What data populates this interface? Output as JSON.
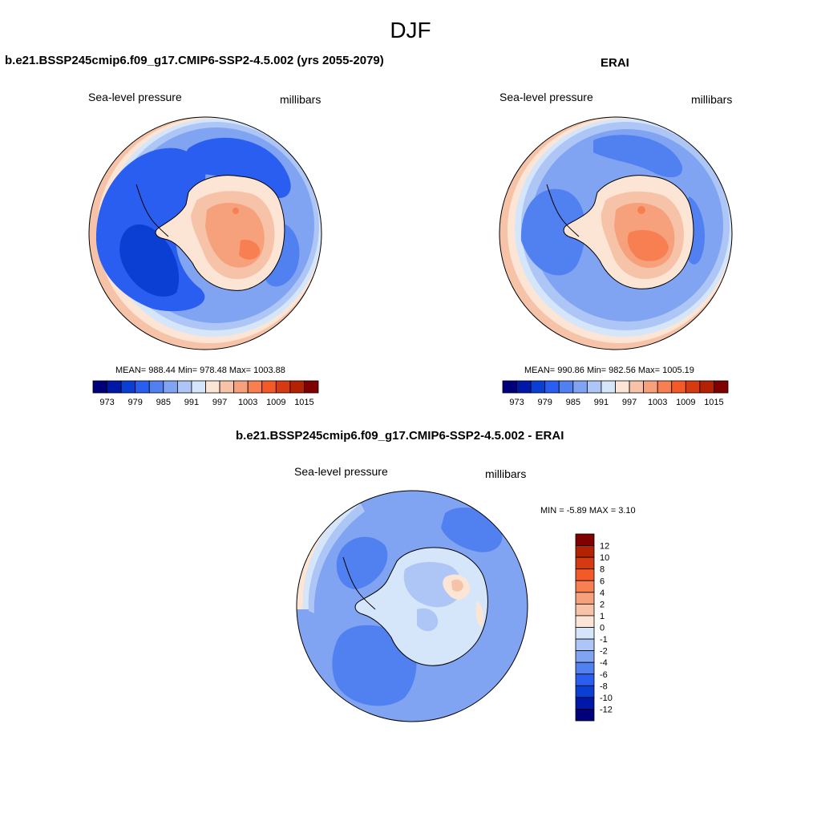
{
  "figure": {
    "title": "DJF"
  },
  "panels": {
    "model": {
      "title": "b.e21.BSSP245cmip6.f09_g17.CMIP6-SSP2-4.5.002 (yrs 2055-2079)",
      "left_label": "Sea-level pressure",
      "right_label": "millibars",
      "stats": "MEAN= 988.44  Min= 978.48  Max= 1003.88"
    },
    "obs": {
      "title": "ERAI",
      "left_label": "Sea-level pressure",
      "right_label": "millibars",
      "stats": "MEAN= 990.86  Min= 982.56  Max= 1005.19"
    },
    "diff": {
      "title": "b.e21.BSSP245cmip6.f09_g17.CMIP6-SSP2-4.5.002 - ERAI",
      "left_label": "Sea-level pressure",
      "right_label": "millibars",
      "stats": "MIN =  -5.89 MAX =   3.10"
    }
  },
  "colorbars": {
    "abs": {
      "colors": [
        "#00007a",
        "#0018a8",
        "#0b3fd4",
        "#2a5ef0",
        "#5180f0",
        "#80a4f2",
        "#aec6f6",
        "#d6e6fa",
        "#fde5d6",
        "#f7c3a8",
        "#f6a07c",
        "#f77f52",
        "#f45a28",
        "#d63a10",
        "#b22203",
        "#800000"
      ],
      "tick_labels": [
        "973",
        "979",
        "985",
        "991",
        "997",
        "1003",
        "1009",
        "1015"
      ]
    },
    "diff": {
      "colors": [
        "#800000",
        "#b22203",
        "#d63a10",
        "#f45a28",
        "#f77f52",
        "#f6a07c",
        "#f7c3a8",
        "#fde5d6",
        "#d6e6fa",
        "#aec6f6",
        "#80a4f2",
        "#5180f0",
        "#2a5ef0",
        "#0b3fd4",
        "#0018a8",
        "#00007a"
      ],
      "tick_labels": [
        "12",
        "10",
        "8",
        "6",
        "4",
        "2",
        "1",
        "0",
        "-1",
        "-2",
        "-4",
        "-6",
        "-8",
        "-10",
        "-12"
      ]
    }
  },
  "map_colors": {
    "pink_edge": "#f7c3a8",
    "cream": "#fde5d6",
    "lightest_blue": "#d6e6fa",
    "light_blue": "#aec6f6",
    "mid_blue": "#80a4f2",
    "blue": "#5180f0",
    "deep_blue": "#2a5ef0",
    "darker_blue": "#0b3fd4",
    "orange1": "#f6a07c",
    "orange2": "#f77f52"
  }
}
